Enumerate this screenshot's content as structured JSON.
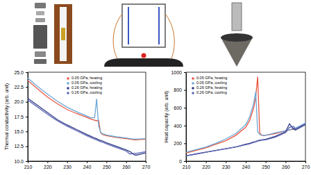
{
  "chart_data": [
    {
      "type": "line",
      "y_label": "Thermal conductivity (arb. unit)",
      "x": [
        210,
        215,
        220,
        225,
        230,
        235,
        240,
        242,
        244,
        245,
        246,
        247,
        248,
        250,
        255,
        260,
        262,
        264,
        265,
        270
      ],
      "xlim": [
        210,
        270
      ],
      "xticks": [
        210,
        220,
        230,
        240,
        250,
        260,
        270
      ],
      "ylim": [
        10,
        25
      ],
      "yticks": [
        {
          "value": 10,
          "label": "10.0"
        },
        {
          "value": 12.5,
          "label": "12.5"
        },
        {
          "value": 15,
          "label": "15.0"
        },
        {
          "value": 17.5,
          "label": "17.5"
        },
        {
          "value": 20,
          "label": "20.0"
        },
        {
          "value": 22.5,
          "label": "22.5"
        },
        {
          "value": 25,
          "label": "25.0"
        }
      ],
      "legend": "upper center",
      "series": [
        {
          "name": "0.05 GPa, heating",
          "color": "#e8553f",
          "values": [
            23.6,
            22.2,
            20.8,
            19.7,
            18.7,
            18.0,
            17.4,
            17.1,
            16.9,
            16.8,
            16.9,
            14.8,
            14.5,
            14.3,
            14.0,
            13.8,
            13.7,
            13.6,
            13.6,
            13.7
          ]
        },
        {
          "name": "0.05 GPa, cooling",
          "color": "#6aa6d6",
          "values": [
            24.0,
            22.6,
            21.3,
            20.1,
            19.1,
            18.3,
            17.6,
            17.3,
            17.3,
            20.5,
            16.0,
            14.9,
            14.6,
            14.4,
            14.1,
            13.9,
            13.8,
            13.7,
            13.7,
            13.8
          ]
        },
        {
          "name": "0.26 GPa, heating",
          "color": "#2f3b85",
          "values": [
            20.6,
            19.4,
            18.2,
            17.0,
            16.1,
            15.3,
            14.5,
            14.2,
            13.9,
            13.8,
            13.6,
            13.5,
            13.4,
            13.1,
            12.5,
            11.9,
            11.6,
            11.1,
            11.0,
            11.4
          ]
        },
        {
          "name": "0.26 GPa, cooling",
          "color": "#5b63b5",
          "values": [
            20.3,
            19.1,
            17.9,
            16.8,
            15.9,
            15.1,
            14.3,
            14.0,
            13.7,
            13.6,
            13.4,
            13.3,
            13.2,
            12.9,
            12.3,
            11.7,
            11.2,
            11.3,
            11.3,
            11.6
          ]
        }
      ]
    },
    {
      "type": "line",
      "y_label": "Heat capacity (arb. unit)",
      "x": [
        210,
        215,
        220,
        225,
        230,
        235,
        240,
        242,
        244,
        245,
        246,
        247,
        248,
        250,
        255,
        260,
        262,
        264,
        265,
        270
      ],
      "xlim": [
        210,
        270
      ],
      "xticks": [
        210,
        220,
        230,
        240,
        250,
        260,
        270
      ],
      "ylim": [
        0,
        1000
      ],
      "yticks": [
        0,
        200,
        400,
        600,
        800,
        1000
      ],
      "legend": "upper left",
      "series": [
        {
          "name": "0.05 GPa, heating",
          "color": "#e8553f",
          "values": [
            90,
            120,
            150,
            190,
            230,
            290,
            380,
            460,
            600,
            720,
            950,
            320,
            290,
            290,
            310,
            340,
            350,
            360,
            370,
            420
          ]
        },
        {
          "name": "0.05 GPa, cooling",
          "color": "#6aa6d6",
          "values": [
            100,
            130,
            160,
            200,
            250,
            310,
            410,
            500,
            650,
            780,
            330,
            300,
            290,
            290,
            320,
            340,
            350,
            370,
            370,
            430
          ]
        },
        {
          "name": "0.26 GPa, heating",
          "color": "#2f3b85",
          "values": [
            60,
            80,
            100,
            120,
            140,
            160,
            190,
            200,
            215,
            220,
            230,
            235,
            240,
            245,
            280,
            330,
            420,
            360,
            350,
            410
          ]
        },
        {
          "name": "0.26 GPa, cooling",
          "color": "#5b63b5",
          "values": [
            60,
            80,
            100,
            120,
            140,
            160,
            185,
            195,
            210,
            215,
            225,
            230,
            235,
            240,
            270,
            320,
            380,
            390,
            360,
            420
          ]
        }
      ]
    }
  ]
}
